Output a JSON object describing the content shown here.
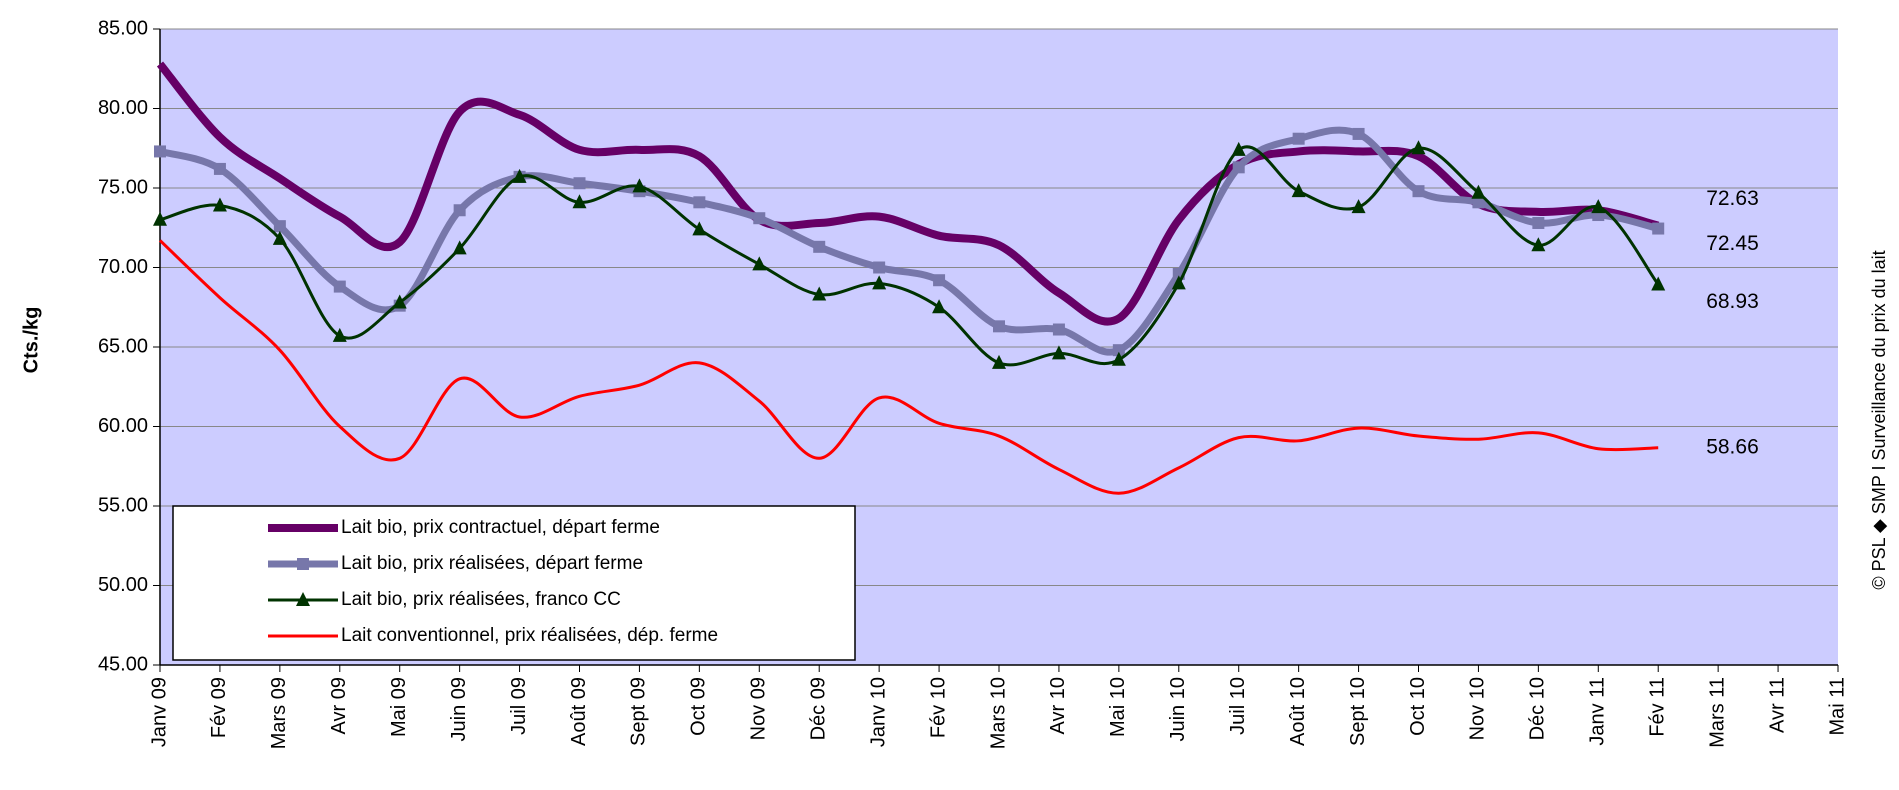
{
  "chart_data": {
    "type": "line",
    "y_label": "Cts./kg",
    "side_note": "© PSL ◆ SMP I  Surveillance du prix du lait",
    "categories": [
      "Janv 09",
      "Fév 09",
      "Mars 09",
      "Avr 09",
      "Mai 09",
      "Juin 09",
      "Juil 09",
      "Août 09",
      "Sept 09",
      "Oct 09",
      "Nov 09",
      "Déc 09",
      "Janv 10",
      "Fév 10",
      "Mars 10",
      "Avr 10",
      "Mai 10",
      "Juin 10",
      "Juil 10",
      "Août 10",
      "Sept 10",
      "Oct 10",
      "Nov 10",
      "Déc 10",
      "Janv 11",
      "Fév 11",
      "Mars 11",
      "Avr 11",
      "Mai 11"
    ],
    "series": [
      {
        "name": "Lait bio, prix contractuel, départ ferme",
        "color": "#660066",
        "marker": "none",
        "values": [
          82.8,
          78.2,
          75.6,
          73.2,
          71.6,
          79.8,
          79.6,
          77.4,
          77.4,
          77.0,
          73.0,
          72.8,
          73.2,
          72.0,
          71.4,
          68.4,
          66.8,
          73.0,
          76.5,
          77.3,
          77.3,
          77.0,
          74.0,
          73.5,
          73.6,
          72.63,
          null,
          null,
          null
        ]
      },
      {
        "name": "Lait bio, prix réalisées, départ ferme",
        "color": "#7777aa",
        "marker": "square",
        "values": [
          77.3,
          76.2,
          72.6,
          68.8,
          67.6,
          73.6,
          75.7,
          75.3,
          74.8,
          74.1,
          73.1,
          71.3,
          70.0,
          69.2,
          66.3,
          66.1,
          64.8,
          69.6,
          76.3,
          78.1,
          78.4,
          74.8,
          74.1,
          72.8,
          73.3,
          72.45,
          null,
          null,
          null
        ]
      },
      {
        "name": "Lait bio, prix réalisées, franco CC",
        "color": "#003300",
        "marker": "triangle",
        "values": [
          73.0,
          73.9,
          71.8,
          65.7,
          67.8,
          71.2,
          75.7,
          74.1,
          75.1,
          72.4,
          70.2,
          68.3,
          69.0,
          67.5,
          64.0,
          64.6,
          64.2,
          69.0,
          77.4,
          74.8,
          73.8,
          77.5,
          74.7,
          71.4,
          73.8,
          68.93,
          null,
          null,
          null
        ]
      },
      {
        "name": "Lait conventionnel, prix réalisées, dép. ferme",
        "color": "#ff0000",
        "marker": "none",
        "values": [
          71.7,
          68.1,
          64.8,
          60.0,
          58.0,
          63.0,
          60.6,
          61.9,
          62.6,
          64.0,
          61.6,
          58.0,
          61.8,
          60.2,
          59.4,
          57.3,
          55.8,
          57.4,
          59.3,
          59.1,
          59.9,
          59.4,
          59.2,
          59.6,
          58.6,
          58.66,
          null,
          null,
          null
        ]
      }
    ],
    "ylim": [
      45,
      85
    ],
    "yticks": [
      {
        "value": 45,
        "label": "45.00"
      },
      {
        "value": 50,
        "label": "50.00"
      },
      {
        "value": 55,
        "label": "55.00"
      },
      {
        "value": 60,
        "label": "60.00"
      },
      {
        "value": 65,
        "label": "65.00"
      },
      {
        "value": 70,
        "label": "70.00"
      },
      {
        "value": 75,
        "label": "75.00"
      },
      {
        "value": 80,
        "label": "80.00"
      },
      {
        "value": 85,
        "label": "85.00"
      }
    ],
    "grid": true,
    "legend": "lower left",
    "background": "#ccccff"
  }
}
